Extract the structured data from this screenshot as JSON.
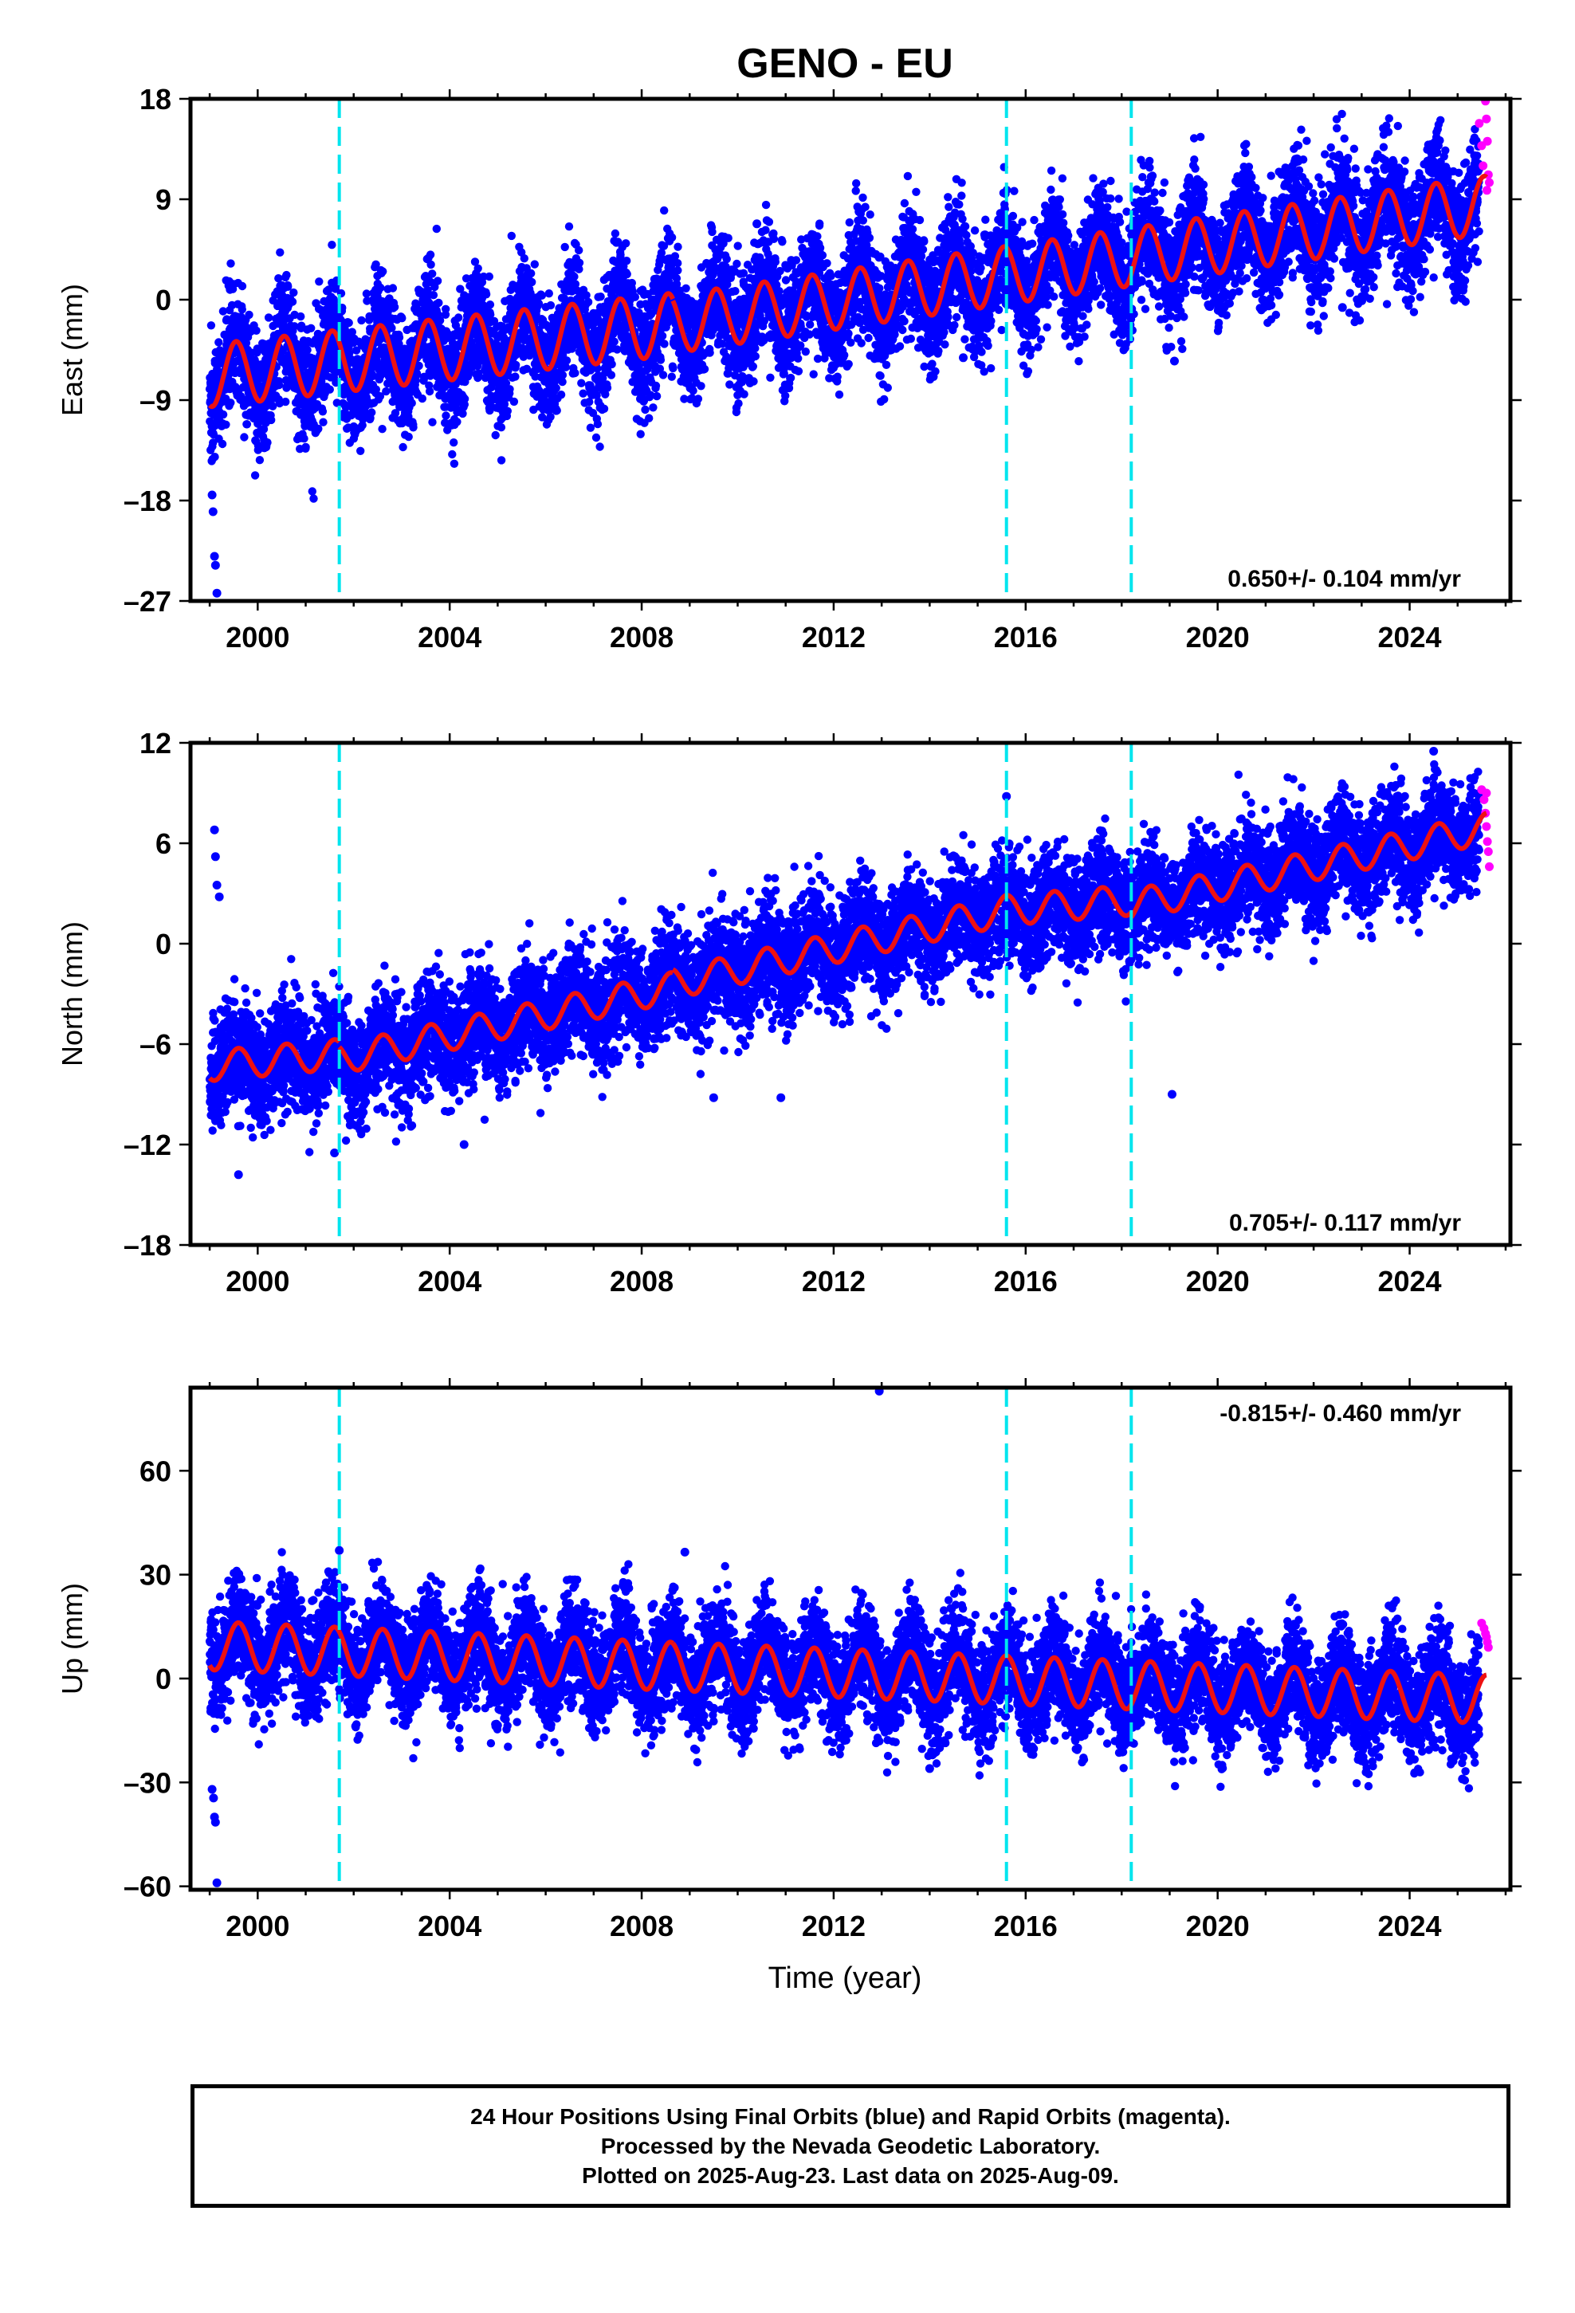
{
  "title": "GENO - EU",
  "xlabel": "Time (year)",
  "footer": {
    "line1": "24 Hour Positions Using Final Orbits (blue) and Rapid Orbits (magenta).",
    "line2": "Processed by the Nevada Geodetic Laboratory.",
    "line3": "Plotted on 2025-Aug-23. Last data on 2025-Aug-09."
  },
  "colors": {
    "final_orbits": "#0000ff",
    "rapid_orbits": "#ff00ff",
    "model_fit": "#ee1111",
    "offset_lines": "#00e5ee"
  },
  "chart_data": [
    {
      "type": "scatter",
      "panel": "east",
      "ylabel": "East (mm)",
      "xlim": [
        1998.6,
        2026.1
      ],
      "ylim": [
        -27,
        18
      ],
      "yticks": [
        -27,
        -18,
        -9,
        0,
        9,
        18
      ],
      "xticks": [
        2000,
        2004,
        2008,
        2012,
        2016,
        2020,
        2024
      ],
      "rate_annotation": "0.650+/- 0.104 mm/yr",
      "offset_epochs": [
        2001.7,
        2015.6,
        2018.2
      ],
      "model": {
        "segments": [
          {
            "start": 1999.0,
            "end": 2008.65,
            "trend": [
              [
                1999.0,
                -6.8
              ],
              [
                2008.65,
                -2.2
              ]
            ],
            "annual_amplitude": 2.8
          },
          {
            "start": 2008.65,
            "end": 2025.6,
            "trend": [
              [
                2008.65,
                -2.2
              ],
              [
                2025.6,
                8.5
              ]
            ],
            "annual_amplitude": 2.6
          }
        ],
        "phase_peak_fraction": 0.55
      },
      "scatter_std": 2.6,
      "outliers": [
        [
          1999.05,
          -17.5
        ],
        [
          1999.07,
          -19.0
        ],
        [
          1999.1,
          -23.0
        ],
        [
          1999.12,
          -23.8
        ],
        [
          1999.15,
          -26.3
        ],
        [
          2022.6,
          -0.7
        ],
        [
          2019.1,
          -5.5
        ],
        [
          2014.7,
          -5.2
        ],
        [
          2010.4,
          6.8
        ]
      ],
      "rapid": [
        [
          2025.45,
          15.8
        ],
        [
          2025.5,
          13.8
        ],
        [
          2025.53,
          12.0
        ],
        [
          2025.56,
          18.7
        ],
        [
          2025.58,
          17.8
        ],
        [
          2025.6,
          16.2
        ],
        [
          2025.62,
          14.2
        ],
        [
          2025.64,
          11.2
        ],
        [
          2025.66,
          10.5
        ],
        [
          2025.61,
          9.8
        ]
      ]
    },
    {
      "type": "scatter",
      "panel": "north",
      "ylabel": "North (mm)",
      "xlim": [
        1998.6,
        2026.1
      ],
      "ylim": [
        -18,
        12
      ],
      "yticks": [
        -18,
        -12,
        -6,
        0,
        6,
        12
      ],
      "xticks": [
        2000,
        2004,
        2008,
        2012,
        2016,
        2020,
        2024
      ],
      "rate_annotation": "0.705+/- 0.117 mm/yr",
      "offset_epochs": [
        2001.7,
        2015.6,
        2018.2
      ],
      "model": {
        "segments": [
          {
            "start": 1999.0,
            "end": 2001.7,
            "trend": [
              [
                1999.0,
                -7.3
              ],
              [
                2001.7,
                -6.6
              ]
            ],
            "annual_amplitude": 0.9
          },
          {
            "start": 2001.7,
            "end": 2008.65,
            "trend": [
              [
                2001.7,
                -6.9
              ],
              [
                2008.65,
                -2.6
              ]
            ],
            "annual_amplitude": 0.9
          },
          {
            "start": 2008.65,
            "end": 2015.6,
            "trend": [
              [
                2008.65,
                -2.4
              ],
              [
                2015.6,
                2.0
              ]
            ],
            "annual_amplitude": 0.9
          },
          {
            "start": 2015.6,
            "end": 2018.2,
            "trend": [
              [
                2015.6,
                2.0
              ],
              [
                2018.2,
                2.6
              ]
            ],
            "annual_amplitude": 0.9
          },
          {
            "start": 2018.2,
            "end": 2025.6,
            "trend": [
              [
                2018.2,
                2.3
              ],
              [
                2025.6,
                6.9
              ]
            ],
            "annual_amplitude": 0.9
          }
        ],
        "phase_peak_fraction": 0.6
      },
      "scatter_std": 1.6,
      "outliers": [
        [
          1999.1,
          6.8
        ],
        [
          1999.12,
          5.2
        ],
        [
          1999.15,
          3.5
        ],
        [
          1999.2,
          2.8
        ],
        [
          1999.6,
          -13.8
        ],
        [
          2001.6,
          -12.5
        ],
        [
          2004.3,
          -12.0
        ],
        [
          2009.5,
          -9.2
        ],
        [
          2010.9,
          -9.2
        ],
        [
          2012.95,
          -18.2
        ],
        [
          2019.05,
          -9.0
        ],
        [
          2015.6,
          8.8
        ],
        [
          2024.5,
          11.5
        ]
      ],
      "rapid": [
        [
          2025.5,
          9.2
        ],
        [
          2025.55,
          8.6
        ],
        [
          2025.58,
          7.8
        ],
        [
          2025.6,
          7.0
        ],
        [
          2025.62,
          6.1
        ],
        [
          2025.64,
          5.5
        ],
        [
          2025.66,
          4.6
        ],
        [
          2025.6,
          9.0
        ]
      ]
    },
    {
      "type": "scatter",
      "panel": "up",
      "ylabel": "Up (mm)",
      "xlim": [
        1998.6,
        2026.1
      ],
      "ylim": [
        -61,
        84
      ],
      "yticks": [
        -60,
        -30,
        0,
        30,
        60
      ],
      "xticks": [
        2000,
        2004,
        2008,
        2012,
        2016,
        2020,
        2024
      ],
      "rate_annotation": "-0.815+/- 0.460 mm/yr",
      "offset_epochs": [
        2001.7,
        2015.6,
        2018.2
      ],
      "model": {
        "segments": [
          {
            "start": 1999.0,
            "end": 2008.65,
            "trend": [
              [
                1999.0,
                9.5
              ],
              [
                2008.65,
                3.5
              ]
            ],
            "annual_amplitude": 7.0
          },
          {
            "start": 2008.65,
            "end": 2025.6,
            "trend": [
              [
                2008.65,
                3.5
              ],
              [
                2025.6,
                -6.0
              ]
            ],
            "annual_amplitude": 7.0
          }
        ],
        "phase_peak_fraction": 0.6
      },
      "scatter_std": 7.5,
      "outliers": [
        [
          1999.05,
          -32.0
        ],
        [
          1999.08,
          -34.5
        ],
        [
          1999.1,
          -40.0
        ],
        [
          1999.12,
          -41.5
        ],
        [
          1999.15,
          -59.0
        ],
        [
          2012.95,
          83.0
        ],
        [
          2001.7,
          37.0
        ],
        [
          2008.9,
          36.5
        ],
        [
          2014.0,
          -26.0
        ],
        [
          2025.1,
          -29.0
        ]
      ],
      "rapid": [
        [
          2025.5,
          16.0
        ],
        [
          2025.55,
          14.5
        ],
        [
          2025.58,
          13.0
        ],
        [
          2025.6,
          12.0
        ],
        [
          2025.62,
          10.5
        ],
        [
          2025.64,
          9.0
        ]
      ]
    }
  ]
}
